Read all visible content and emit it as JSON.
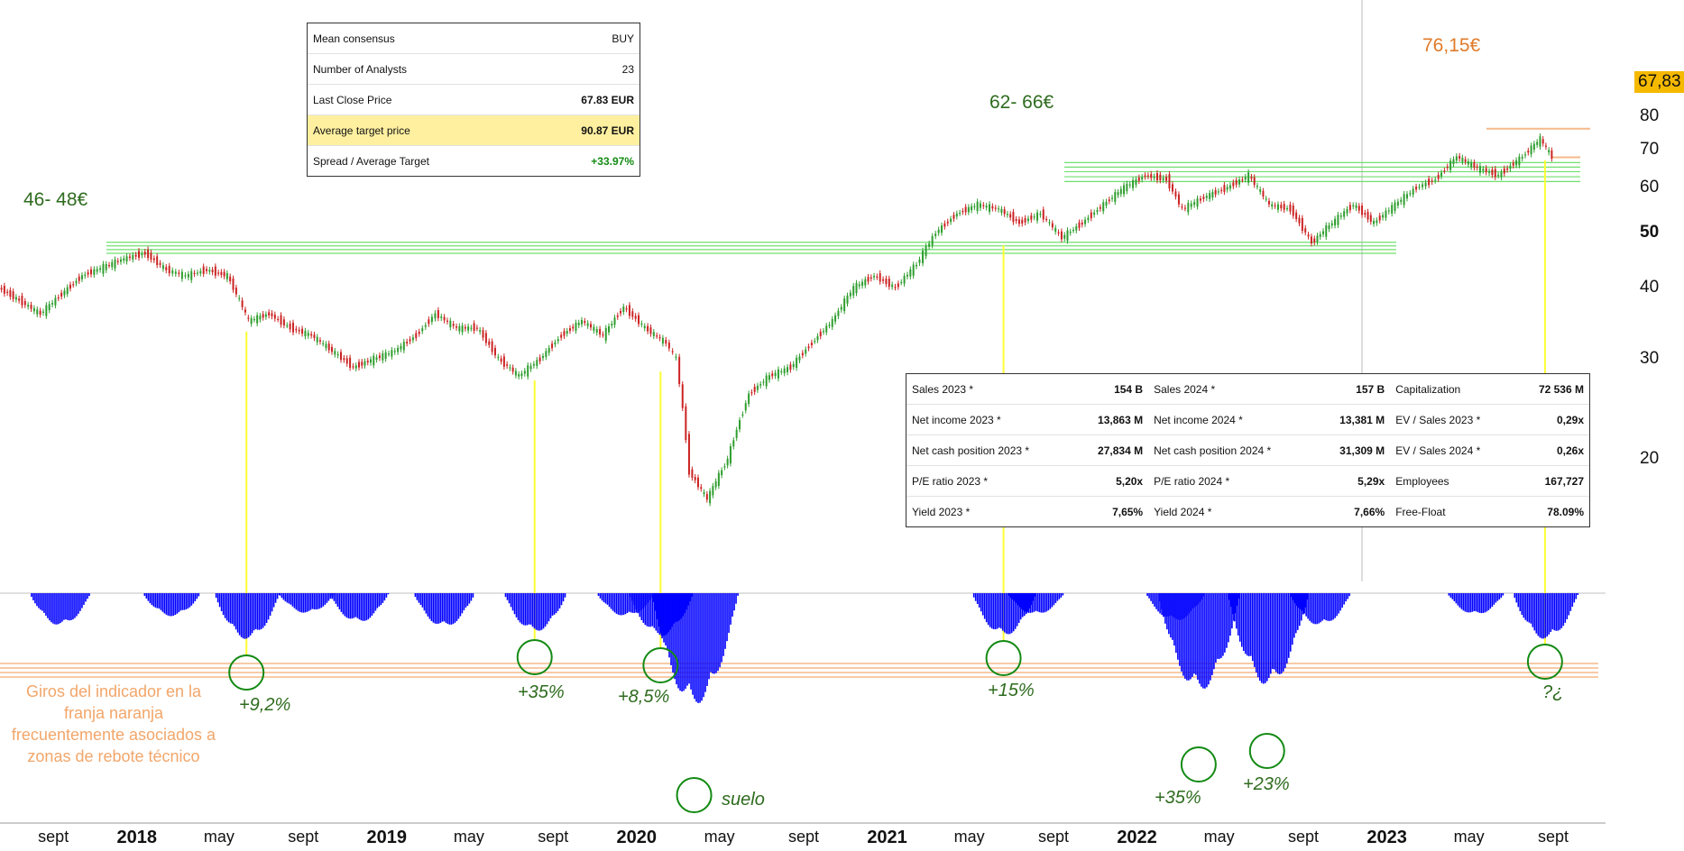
{
  "colors": {
    "level_green": "#6fe06f",
    "level_orange": "#f6b98a",
    "signal_yellow": "#ffff33",
    "indicator_blue": "#0000ff",
    "circle_green": "#138a13",
    "price_tag": "#f5b900",
    "candle_up": "#2e9e2e",
    "candle_down": "#cc2222"
  },
  "consensus_box": {
    "rows": [
      {
        "label": "Mean consensus",
        "value": "BUY"
      },
      {
        "label": "Number of Analysts",
        "value": "23"
      },
      {
        "label": "Last Close Price",
        "value": "67.83 EUR"
      },
      {
        "label": "Average target price",
        "value": "90.87 EUR"
      },
      {
        "label": "Spread / Average Target",
        "value": "+33.97%"
      }
    ]
  },
  "fundamentals_box": {
    "rows": [
      [
        {
          "label": "Sales 2023 *",
          "value": "154 B"
        },
        {
          "label": "Sales 2024 *",
          "value": "157 B"
        },
        {
          "label": "Capitalization",
          "value": "72 536 M"
        }
      ],
      [
        {
          "label": "Net income 2023 *",
          "value": "13,863 M"
        },
        {
          "label": "Net income 2024 *",
          "value": "13,381 M"
        },
        {
          "label": "EV / Sales 2023 *",
          "value": "0,29x"
        }
      ],
      [
        {
          "label": "Net cash position 2023 *",
          "value": "27,834 M"
        },
        {
          "label": "Net cash position 2024 *",
          "value": "31,309 M"
        },
        {
          "label": "EV / Sales 2024 *",
          "value": "0,26x"
        }
      ],
      [
        {
          "label": "P/E ratio 2023 *",
          "value": "5,20x"
        },
        {
          "label": "P/E ratio 2024 *",
          "value": "5,29x"
        },
        {
          "label": "Employees",
          "value": "167,727"
        }
      ],
      [
        {
          "label": "Yield 2023 *",
          "value": "7,65%"
        },
        {
          "label": "Yield 2024 *",
          "value": "7,66%"
        },
        {
          "label": "Free-Float",
          "value": "78.09%"
        }
      ]
    ]
  },
  "annotations": {
    "level_low": "46- 48€",
    "level_high": "62- 66€",
    "high_price": "76,15€",
    "last_price": "67,83",
    "caption": "Giros del indicador en la franja naranja frecuentemente asociados a zonas de rebote técnico",
    "suelo": "suelo",
    "rebounds": [
      "+9,2%",
      "+35%",
      "+8,5%",
      "+15%",
      "+35%",
      "+23%",
      "?¿"
    ]
  },
  "chart_data": {
    "type": "line",
    "title": "",
    "y_scale": "log",
    "y_ticks": [
      20,
      30,
      40,
      50,
      60,
      70,
      80
    ],
    "x_ticks": [
      {
        "label": "sept",
        "date": "2017-09",
        "year": false
      },
      {
        "label": "2018",
        "date": "2018-01",
        "year": true
      },
      {
        "label": "may",
        "date": "2018-05",
        "year": false
      },
      {
        "label": "sept",
        "date": "2018-09",
        "year": false
      },
      {
        "label": "2019",
        "date": "2019-01",
        "year": true
      },
      {
        "label": "may",
        "date": "2019-05",
        "year": false
      },
      {
        "label": "sept",
        "date": "2019-09",
        "year": false
      },
      {
        "label": "2020",
        "date": "2020-01",
        "year": true
      },
      {
        "label": "may",
        "date": "2020-05",
        "year": false
      },
      {
        "label": "sept",
        "date": "2020-09",
        "year": false
      },
      {
        "label": "2021",
        "date": "2021-01",
        "year": true
      },
      {
        "label": "may",
        "date": "2021-05",
        "year": false
      },
      {
        "label": "sept",
        "date": "2021-09",
        "year": false
      },
      {
        "label": "2022",
        "date": "2022-01",
        "year": true
      },
      {
        "label": "may",
        "date": "2022-05",
        "year": false
      },
      {
        "label": "sept",
        "date": "2022-09",
        "year": false
      },
      {
        "label": "2023",
        "date": "2023-01",
        "year": true
      },
      {
        "label": "may",
        "date": "2023-05",
        "year": false
      },
      {
        "label": "sept",
        "date": "2023-09",
        "year": false
      }
    ],
    "price_series": {
      "x": [
        "2017-06-15",
        "2017-07-15",
        "2017-08-15",
        "2017-09-15",
        "2017-10-15",
        "2017-11-15",
        "2017-12-15",
        "2018-01-15",
        "2018-02-15",
        "2018-03-15",
        "2018-04-15",
        "2018-05-15",
        "2018-06-15",
        "2018-07-15",
        "2018-08-15",
        "2018-09-15",
        "2018-10-15",
        "2018-11-15",
        "2018-12-15",
        "2019-01-15",
        "2019-02-15",
        "2019-03-15",
        "2019-04-15",
        "2019-05-15",
        "2019-06-15",
        "2019-07-15",
        "2019-08-15",
        "2019-09-15",
        "2019-10-15",
        "2019-11-15",
        "2019-12-15",
        "2020-01-15",
        "2020-02-15",
        "2020-03-01",
        "2020-03-20",
        "2020-04-15",
        "2020-05-15",
        "2020-06-15",
        "2020-07-15",
        "2020-08-15",
        "2020-09-15",
        "2020-10-15",
        "2020-11-15",
        "2020-12-15",
        "2021-01-15",
        "2021-02-15",
        "2021-03-15",
        "2021-04-15",
        "2021-05-15",
        "2021-06-15",
        "2021-07-15",
        "2021-08-15",
        "2021-09-15",
        "2021-10-15",
        "2021-11-15",
        "2021-12-15",
        "2022-01-15",
        "2022-02-15",
        "2022-03-10",
        "2022-04-15",
        "2022-05-15",
        "2022-06-15",
        "2022-07-15",
        "2022-08-15",
        "2022-09-15",
        "2022-10-15",
        "2022-11-15",
        "2022-12-15",
        "2023-01-15",
        "2023-02-15",
        "2023-03-15",
        "2023-04-15",
        "2023-05-15",
        "2023-06-15",
        "2023-07-20",
        "2023-08-15",
        "2023-09-01"
      ],
      "values": [
        40,
        38,
        36,
        39,
        42,
        43.5,
        45,
        46,
        43,
        42,
        43,
        42,
        35,
        36,
        34,
        33,
        31,
        29,
        30,
        31,
        33,
        36,
        34,
        34,
        30,
        28,
        30,
        33,
        35,
        33,
        37,
        34,
        32,
        30,
        19,
        17,
        20,
        26,
        28,
        29,
        32,
        35,
        40,
        42,
        40,
        44,
        50,
        54,
        56,
        55,
        52,
        54,
        49,
        52,
        56,
        60,
        63,
        62,
        55,
        58,
        60,
        63,
        56,
        55,
        48,
        52,
        56,
        52,
        56,
        60,
        62,
        68,
        65,
        63,
        68,
        73,
        67.83
      ]
    },
    "indicator_troughs": [
      {
        "date": "2017-09-10",
        "depth": 0.42
      },
      {
        "date": "2018-02-20",
        "depth": 0.3
      },
      {
        "date": "2018-06-10",
        "depth": 0.6
      },
      {
        "date": "2018-09-05",
        "depth": 0.26
      },
      {
        "date": "2018-11-20",
        "depth": 0.38
      },
      {
        "date": "2019-03-25",
        "depth": 0.44
      },
      {
        "date": "2019-08-05",
        "depth": 0.5
      },
      {
        "date": "2019-12-15",
        "depth": 0.3
      },
      {
        "date": "2020-02-05",
        "depth": 0.56
      },
      {
        "date": "2020-03-25",
        "depth": 1.45
      },
      {
        "date": "2021-06-20",
        "depth": 0.55
      },
      {
        "date": "2021-08-05",
        "depth": 0.28
      },
      {
        "date": "2022-02-25",
        "depth": 0.36
      },
      {
        "date": "2022-04-01",
        "depth": 1.27
      },
      {
        "date": "2022-07-10",
        "depth": 1.2
      },
      {
        "date": "2022-09-25",
        "depth": 0.42
      },
      {
        "date": "2023-05-10",
        "depth": 0.28
      },
      {
        "date": "2023-08-20",
        "depth": 0.6
      }
    ]
  }
}
